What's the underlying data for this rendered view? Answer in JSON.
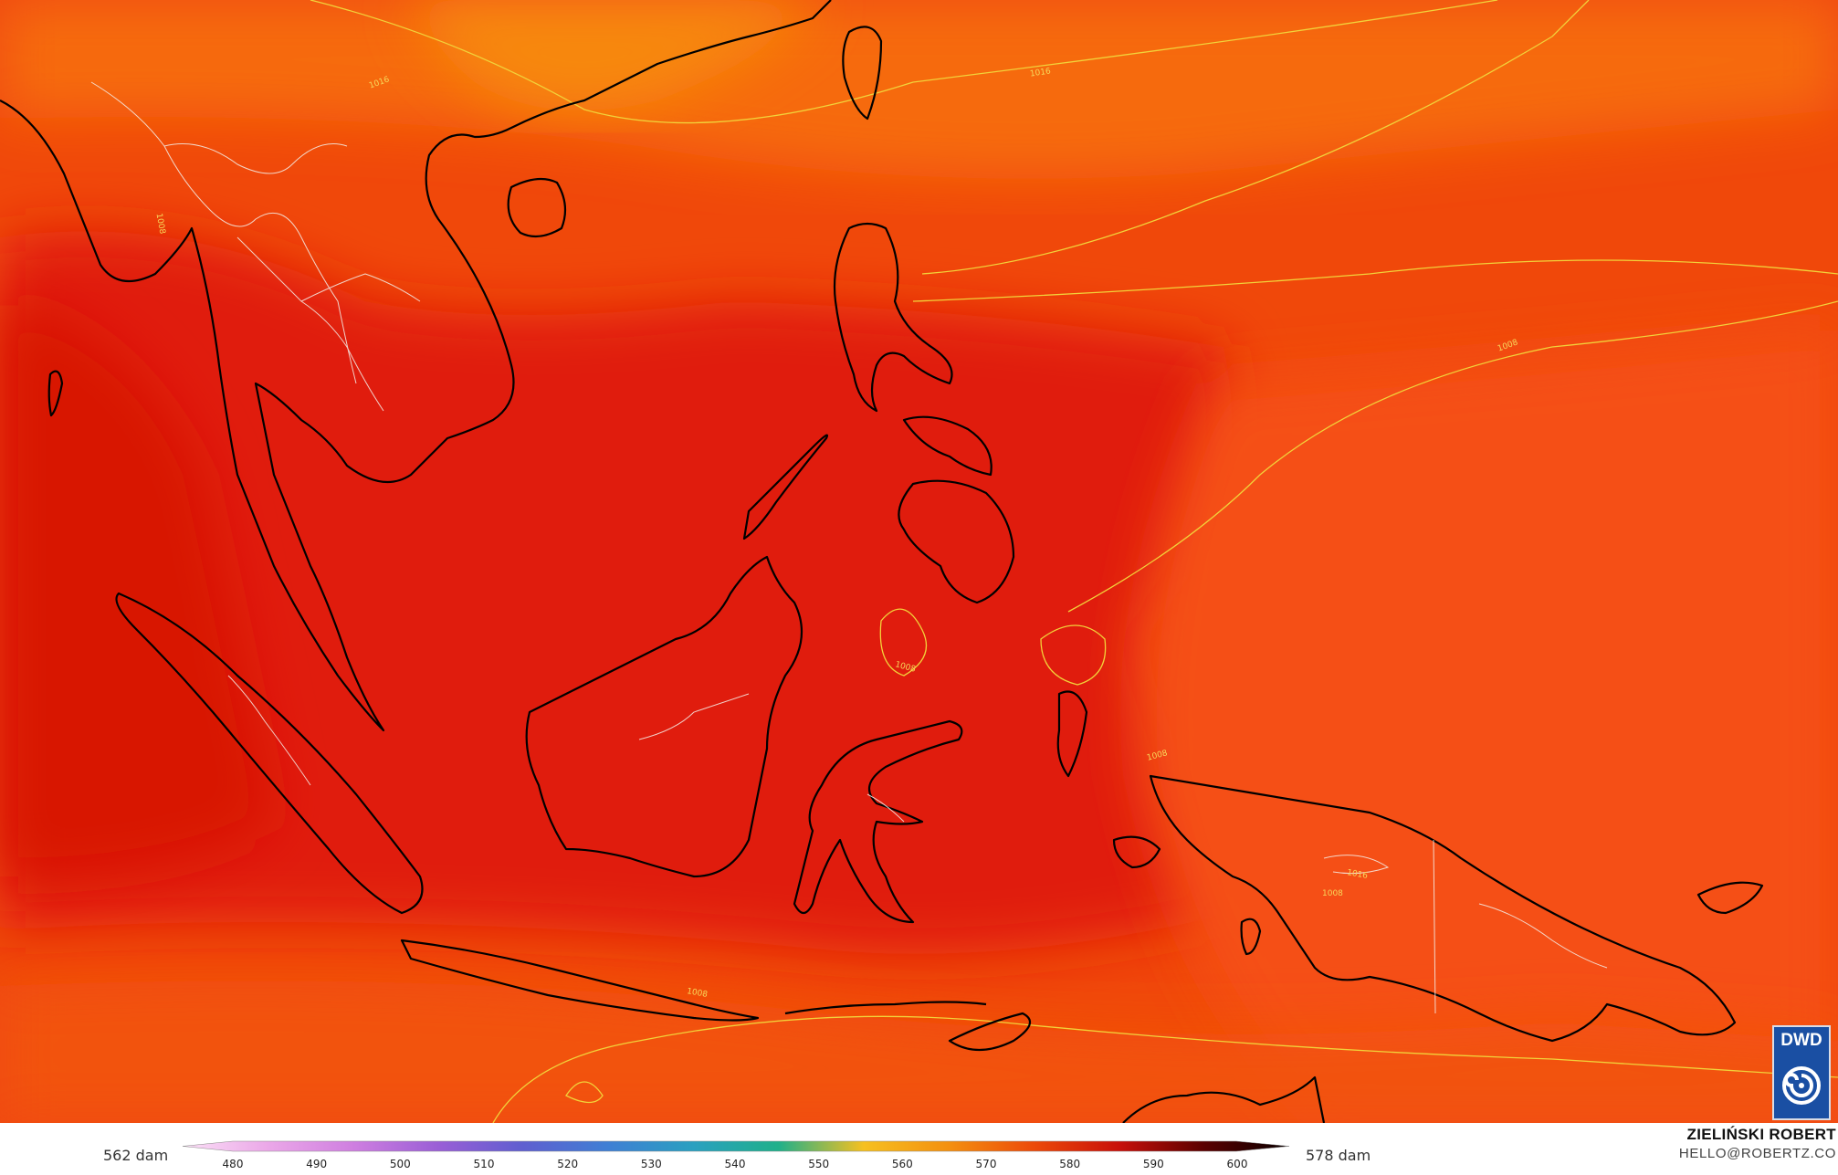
{
  "map": {
    "background_color": "#ea3a08",
    "isobar_labels": [
      "1016",
      "1008",
      "1008",
      "1008",
      "1008",
      "1016",
      "1008",
      "1008",
      "1016"
    ]
  },
  "legend": {
    "left_value": "562 dam",
    "right_value": "578 dam",
    "ticks": [
      "480",
      "490",
      "500",
      "510",
      "520",
      "530",
      "540",
      "550",
      "560",
      "570",
      "580",
      "590",
      "600"
    ],
    "colors": [
      "#fbe0f6",
      "#eba8e8",
      "#cf7fe0",
      "#9a5fd6",
      "#5f5fd0",
      "#3f7fd4",
      "#2aa0c0",
      "#20b08a",
      "#f6c020",
      "#f49010",
      "#ec4a0a",
      "#c8100a",
      "#5a0000",
      "#0a0000"
    ]
  },
  "author": {
    "name": "ZIELIŃSKI ROBERT",
    "email": "HELLO@ROBERTZ.CO"
  },
  "logo": {
    "text": "DWD",
    "color": "#1a4fa3"
  }
}
